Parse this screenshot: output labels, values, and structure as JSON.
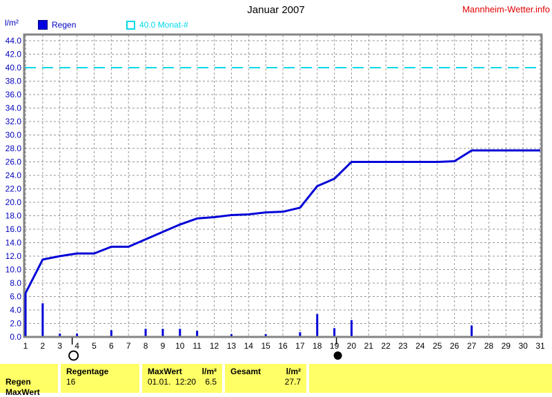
{
  "header": {
    "title": "Januar 2007",
    "watermark": "Mannheim-Wetter.info",
    "unit_label": "l/m²"
  },
  "legend": {
    "regen_label": "Regen",
    "monat_label": "40.0 Monat-#"
  },
  "colors": {
    "series_blue": "#0000d8",
    "legend_blue_fill": "#0000e0",
    "legend_blue_border": "#000080",
    "threshold_cyan": "#00d8e8",
    "axis_label_blue": "#0000c0",
    "grid_gray": "#949494",
    "frame_gray": "#848484",
    "watermark_red": "#e10000",
    "table_yellow": "#ffff66",
    "xaxis_label_black": "#000000"
  },
  "chart_data": {
    "type": "line",
    "title": "Januar 2007",
    "ylabel": "l/m²",
    "x": [
      1,
      2,
      3,
      4,
      5,
      6,
      7,
      8,
      9,
      10,
      11,
      12,
      13,
      14,
      15,
      16,
      17,
      18,
      19,
      20,
      21,
      22,
      23,
      24,
      25,
      26,
      27,
      28,
      29,
      30,
      31
    ],
    "xlim": [
      1,
      31
    ],
    "ylim": [
      0,
      44
    ],
    "ystep": 2,
    "grid": true,
    "threshold": {
      "value": 40.0,
      "label": "40.0 Monat-#"
    },
    "series": [
      {
        "name": "Regen kumuliert",
        "type": "line",
        "values": [
          6.5,
          11.5,
          12.0,
          12.4,
          12.4,
          13.4,
          13.4,
          14.5,
          15.6,
          16.7,
          17.6,
          17.8,
          18.1,
          18.2,
          18.5,
          18.6,
          19.2,
          22.4,
          23.5,
          26.0,
          26.0,
          26.0,
          26.0,
          26.0,
          26.0,
          26.1,
          27.7,
          27.7,
          27.7,
          27.7,
          27.7
        ]
      },
      {
        "name": "Regen Tageswerte",
        "type": "bar",
        "values": [
          6.5,
          5.0,
          0.5,
          0.5,
          0,
          1.0,
          0,
          1.2,
          1.2,
          1.2,
          0.9,
          0,
          0.4,
          0,
          0.4,
          0,
          0.7,
          3.4,
          1.3,
          2.5,
          0,
          0,
          0,
          0,
          0,
          0,
          1.7,
          0,
          0,
          0,
          0
        ]
      }
    ],
    "moon_phases": [
      {
        "day": 3.8,
        "phase": "full-moon"
      },
      {
        "day": 19.2,
        "phase": "new-moon"
      }
    ]
  },
  "table": {
    "row_label": "Regen",
    "row2_label": "MaxWert",
    "cols": [
      {
        "header": "Regentage",
        "value": "16"
      },
      {
        "header": "MaxWert",
        "unit": "l/m²",
        "value": "01.01.  12:20",
        "value2": "6.5"
      },
      {
        "header": "Gesamt",
        "unit": "l/m²",
        "value": "27.7"
      }
    ]
  }
}
